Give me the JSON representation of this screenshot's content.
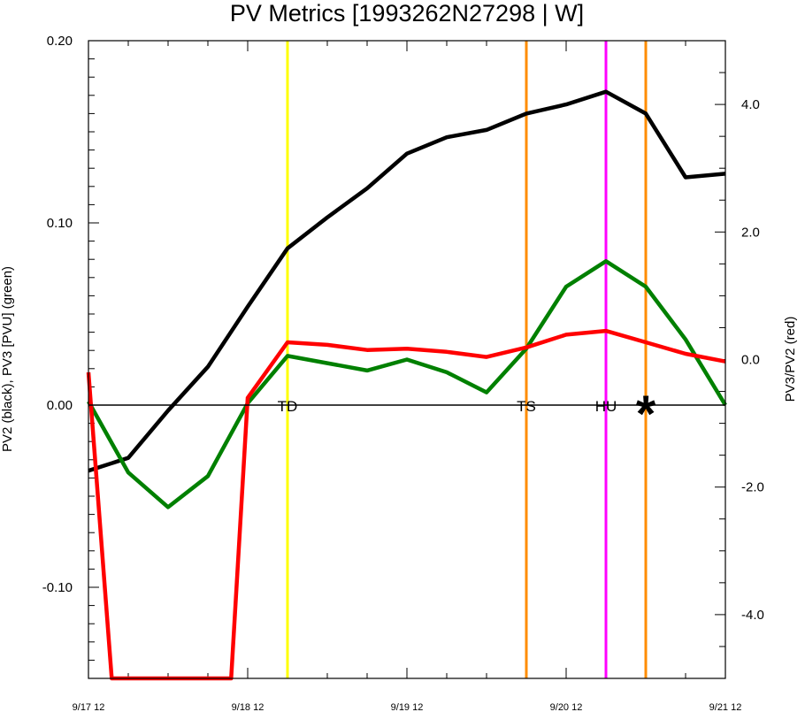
{
  "chart_data": {
    "type": "line",
    "title": "PV Metrics [1993262N27298 | W]",
    "ylabel_left": "PV2 (black), PV3 [PVU] (green)",
    "ylabel_right": "PV3/PV2 (red)",
    "xlim": [
      0,
      96
    ],
    "ylim_left": [
      -0.15,
      0.2
    ],
    "ylim_right": [
      -5.0,
      5.0
    ],
    "x_ticks": [
      {
        "x": 0,
        "label": "9/17 12"
      },
      {
        "x": 24,
        "label": "9/18 12"
      },
      {
        "x": 48,
        "label": "9/19 12"
      },
      {
        "x": 72,
        "label": "9/20 12"
      },
      {
        "x": 96,
        "label": "9/21 12"
      }
    ],
    "y_ticks_left": [
      {
        "value": 0.2,
        "label": "0.20"
      },
      {
        "value": 0.1,
        "label": "0.10"
      },
      {
        "value": 0.0,
        "label": "0.00"
      },
      {
        "value": -0.1,
        "label": "-0.10"
      }
    ],
    "y_ticks_right": [
      {
        "value": 4.0,
        "label": "4.0"
      },
      {
        "value": 2.0,
        "label": "2.0"
      },
      {
        "value": 0.0,
        "label": "0.0"
      },
      {
        "value": -2.0,
        "label": "-2.0"
      },
      {
        "value": -4.0,
        "label": "-4.0"
      }
    ],
    "x": [
      0,
      6,
      12,
      18,
      24,
      30,
      36,
      42,
      48,
      54,
      60,
      66,
      72,
      78,
      84,
      90,
      96
    ],
    "series": [
      {
        "key": "pv2",
        "axis": "left",
        "color": "#000000",
        "values": [
          -0.036,
          -0.029,
          -0.003,
          0.021,
          0.054,
          0.086,
          0.103,
          0.119,
          0.138,
          0.147,
          0.151,
          0.16,
          0.165,
          0.172,
          0.16,
          0.125,
          0.127
        ]
      },
      {
        "key": "pv3",
        "axis": "left",
        "color": "#008000",
        "values": [
          0.002,
          -0.037,
          -0.056,
          -0.039,
          0.001,
          0.027,
          0.023,
          0.019,
          0.025,
          0.018,
          0.007,
          0.031,
          0.065,
          0.079,
          0.065,
          0.036,
          0.0
        ]
      },
      {
        "key": "ratio",
        "axis": "right",
        "color": "#ff0000",
        "x": [
          0,
          3.5,
          21.5,
          24,
          30,
          36,
          42,
          48,
          54,
          60,
          66,
          72,
          78,
          84,
          90,
          96
        ],
        "values": [
          -0.2,
          -5.0,
          -5.0,
          -0.6,
          0.27,
          0.23,
          0.15,
          0.17,
          0.12,
          0.04,
          0.19,
          0.39,
          0.45,
          0.27,
          0.09,
          -0.03
        ]
      }
    ],
    "markers": [
      {
        "x": 30,
        "color": "#ffff00",
        "label": "TD"
      },
      {
        "x": 66,
        "color": "#ff8c00",
        "label": "TS"
      },
      {
        "x": 78,
        "color": "#ff00ff",
        "label": "HU"
      },
      {
        "x": 84,
        "color": "#ff8c00",
        "label": "*"
      }
    ]
  }
}
